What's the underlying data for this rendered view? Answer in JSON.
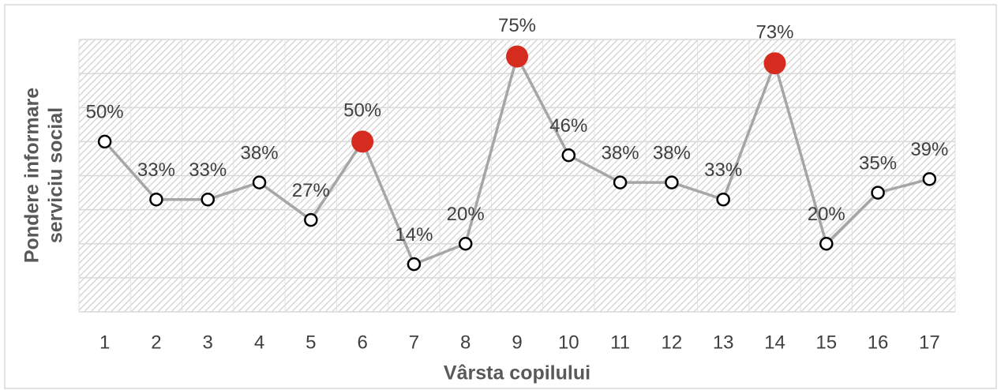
{
  "chart_data": {
    "type": "line",
    "x_label": "Vârsta copilului",
    "y_label": [
      "Pondere informare",
      "serviciu social"
    ],
    "categories": [
      "1",
      "2",
      "3",
      "4",
      "5",
      "6",
      "7",
      "8",
      "9",
      "10",
      "11",
      "12",
      "13",
      "14",
      "15",
      "16",
      "17"
    ],
    "values": [
      50,
      33,
      33,
      38,
      27,
      50,
      14,
      20,
      75,
      46,
      38,
      38,
      33,
      73,
      20,
      35,
      39
    ],
    "value_labels": [
      "50%",
      "33%",
      "33%",
      "38%",
      "27%",
      "50%",
      "14%",
      "20%",
      "75%",
      "46%",
      "38%",
      "38%",
      "33%",
      "73%",
      "20%",
      "35%",
      "39%"
    ],
    "color": "#a6a6a6",
    "point_colors": [
      "#ffffff",
      "#ffffff",
      "#ffffff",
      "#ffffff",
      "#ffffff",
      "#d62b1f",
      "#ffffff",
      "#ffffff",
      "#d62b1f",
      "#ffffff",
      "#ffffff",
      "#ffffff",
      "#ffffff",
      "#d62b1f",
      "#ffffff",
      "#ffffff",
      "#ffffff"
    ],
    "highlight_color": "#d62b1f",
    "ylim": [
      0,
      80
    ],
    "yticks": [
      0,
      10,
      20,
      30,
      40,
      50,
      60,
      70,
      80
    ],
    "grid": true
  }
}
